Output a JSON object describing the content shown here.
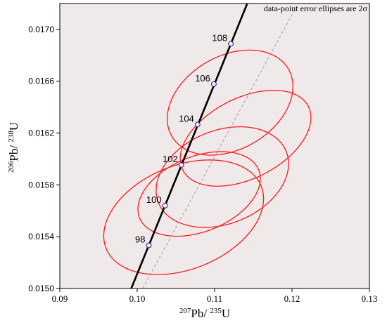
{
  "chart_data": {
    "type": "scatter",
    "annotation": "data-point error ellipses are 2σ",
    "xlabel": {
      "sup1": "207",
      "base1": "Pb/ ",
      "sup2": "235",
      "base2": "U"
    },
    "ylabel": {
      "sup1": "206",
      "base1": "Pb/ ",
      "sup2": "238",
      "base2": "U"
    },
    "xlim": [
      0.09,
      0.13
    ],
    "ylim": [
      0.015,
      0.0172
    ],
    "x_ticks": [
      {
        "v": 0.09,
        "label": "0.09"
      },
      {
        "v": 0.1,
        "label": "0.10"
      },
      {
        "v": 0.11,
        "label": "0.11"
      },
      {
        "v": 0.12,
        "label": "0.12"
      },
      {
        "v": 0.13,
        "label": "0.13"
      }
    ],
    "y_ticks": [
      {
        "v": 0.015,
        "label": "0.0150"
      },
      {
        "v": 0.0154,
        "label": "0.0154"
      },
      {
        "v": 0.0158,
        "label": "0.0158"
      },
      {
        "v": 0.0162,
        "label": "0.0162"
      },
      {
        "v": 0.0166,
        "label": "0.0166"
      },
      {
        "v": 0.017,
        "label": "0.0170"
      }
    ],
    "concordia": {
      "color": "#000000",
      "age_marks": [
        {
          "label": "98",
          "x": 0.1015,
          "y": 0.015333
        },
        {
          "label": "100",
          "x": 0.1036,
          "y": 0.01564
        },
        {
          "label": "102",
          "x": 0.1057,
          "y": 0.015953
        },
        {
          "label": "104",
          "x": 0.1078,
          "y": 0.016266
        },
        {
          "label": "106",
          "x": 0.1099,
          "y": 0.016578
        },
        {
          "label": "108",
          "x": 0.1121,
          "y": 0.016889
        }
      ]
    },
    "reference_line": {
      "color": "#9090b0",
      "points": [
        {
          "x": 0.1007,
          "y": 0.015
        },
        {
          "x": 0.1208,
          "y": 0.0172
        }
      ]
    },
    "error_ellipses": {
      "color": "#ff1a1a",
      "items": [
        {
          "cx": 0.112,
          "cy": 0.016435,
          "rx": 0.0087,
          "ry": 0.00036,
          "angle": 30
        },
        {
          "cx": 0.114,
          "cy": 0.01616,
          "rx": 0.0091,
          "ry": 0.00031,
          "angle": 27
        },
        {
          "cx": 0.111,
          "cy": 0.01586,
          "rx": 0.0089,
          "ry": 0.00036,
          "angle": 22
        },
        {
          "cx": 0.106,
          "cy": 0.01555,
          "rx": 0.0108,
          "ry": 0.0004,
          "angle": 22
        },
        {
          "cx": 0.108,
          "cy": 0.01573,
          "rx": 0.0083,
          "ry": 0.00029,
          "angle": 22
        }
      ]
    },
    "colors": {
      "plot_background": "#efe9e9",
      "frame": "#000000"
    }
  }
}
